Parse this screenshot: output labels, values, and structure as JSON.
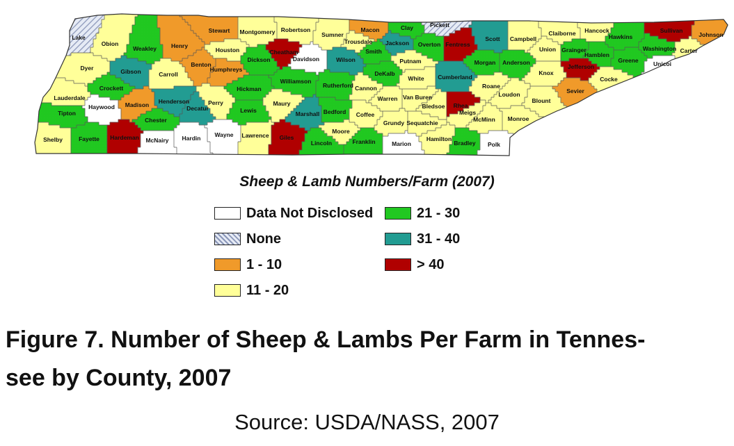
{
  "map": {
    "legend_title": "Sheep & Lamb Numbers/Farm (2007)",
    "categories": [
      {
        "key": "nd",
        "label": "Data Not Disclosed",
        "color": "#ffffff",
        "hatched": false
      },
      {
        "key": "none",
        "label": "None",
        "color": "#cfd8ea",
        "hatched": true
      },
      {
        "key": "c1",
        "label": "1 - 10",
        "color": "#f09a2a",
        "hatched": false
      },
      {
        "key": "c2",
        "label": "11 - 20",
        "color": "#ffff99",
        "hatched": false
      },
      {
        "key": "c3",
        "label": "21 - 30",
        "color": "#21c821",
        "hatched": false
      },
      {
        "key": "c4",
        "label": "31 - 40",
        "color": "#229c92",
        "hatched": false
      },
      {
        "key": "c5",
        "label": "> 40",
        "color": "#b00000",
        "hatched": false
      }
    ],
    "counties": [
      {
        "name": "Lake",
        "category": "none"
      },
      {
        "name": "Obion",
        "category": "c2"
      },
      {
        "name": "Weakley",
        "category": "c3"
      },
      {
        "name": "Henry",
        "category": "c1"
      },
      {
        "name": "Stewart",
        "category": "c1"
      },
      {
        "name": "Montgomery",
        "category": "c2"
      },
      {
        "name": "Robertson",
        "category": "c2"
      },
      {
        "name": "Sumner",
        "category": "c2"
      },
      {
        "name": "Macon",
        "category": "c1"
      },
      {
        "name": "Clay",
        "category": "c3"
      },
      {
        "name": "Pickett",
        "category": "none"
      },
      {
        "name": "Scott",
        "category": "c4"
      },
      {
        "name": "Campbell",
        "category": "c2"
      },
      {
        "name": "Claiborne",
        "category": "c2"
      },
      {
        "name": "Hancock",
        "category": "c2"
      },
      {
        "name": "Hawkins",
        "category": "c3"
      },
      {
        "name": "Sullivan",
        "category": "c5"
      },
      {
        "name": "Johnson",
        "category": "c1"
      },
      {
        "name": "Dyer",
        "category": "c2"
      },
      {
        "name": "Gibson",
        "category": "c4"
      },
      {
        "name": "Carroll",
        "category": "c2"
      },
      {
        "name": "Benton",
        "category": "c1"
      },
      {
        "name": "Houston",
        "category": "c2"
      },
      {
        "name": "Humphreys",
        "category": "c1"
      },
      {
        "name": "Cheatham",
        "category": "c5"
      },
      {
        "name": "Dickson",
        "category": "c3"
      },
      {
        "name": "Davidson",
        "category": "nd"
      },
      {
        "name": "Trousdale",
        "category": "c2"
      },
      {
        "name": "Smith",
        "category": "c3"
      },
      {
        "name": "Wilson",
        "category": "c4"
      },
      {
        "name": "Jackson",
        "category": "c4"
      },
      {
        "name": "Overton",
        "category": "c3"
      },
      {
        "name": "Fentress",
        "category": "c5"
      },
      {
        "name": "Putnam",
        "category": "c2"
      },
      {
        "name": "Morgan",
        "category": "c3"
      },
      {
        "name": "Anderson",
        "category": "c3"
      },
      {
        "name": "Union",
        "category": "c2"
      },
      {
        "name": "Grainger",
        "category": "c3"
      },
      {
        "name": "Hamblen",
        "category": "c3"
      },
      {
        "name": "Jefferson",
        "category": "c5"
      },
      {
        "name": "Greene",
        "category": "c3"
      },
      {
        "name": "Washington",
        "category": "c3"
      },
      {
        "name": "Carter",
        "category": "c2"
      },
      {
        "name": "Unicoi",
        "category": "nd"
      },
      {
        "name": "Lauderdale",
        "category": "c2"
      },
      {
        "name": "Crockett",
        "category": "c3"
      },
      {
        "name": "Haywood",
        "category": "nd"
      },
      {
        "name": "Madison",
        "category": "c1"
      },
      {
        "name": "Henderson",
        "category": "c4"
      },
      {
        "name": "Decatur",
        "category": "c4"
      },
      {
        "name": "Perry",
        "category": "c2"
      },
      {
        "name": "Hickman",
        "category": "c3"
      },
      {
        "name": "Williamson",
        "category": "c3"
      },
      {
        "name": "Rutherford",
        "category": "c3"
      },
      {
        "name": "Cannon",
        "category": "c2"
      },
      {
        "name": "DeKalb",
        "category": "c3"
      },
      {
        "name": "White",
        "category": "c2"
      },
      {
        "name": "Cumberland",
        "category": "c4"
      },
      {
        "name": "Roane",
        "category": "c2"
      },
      {
        "name": "Knox",
        "category": "c2"
      },
      {
        "name": "Sevier",
        "category": "c1"
      },
      {
        "name": "Cocke",
        "category": "c2"
      },
      {
        "name": "Tipton",
        "category": "c3"
      },
      {
        "name": "Chester",
        "category": "c3"
      },
      {
        "name": "Lewis",
        "category": "c3"
      },
      {
        "name": "Maury",
        "category": "c2"
      },
      {
        "name": "Marshall",
        "category": "c4"
      },
      {
        "name": "Bedford",
        "category": "c3"
      },
      {
        "name": "Coffee",
        "category": "c2"
      },
      {
        "name": "Warren",
        "category": "c2"
      },
      {
        "name": "Van Buren",
        "category": "c2"
      },
      {
        "name": "Bledsoe",
        "category": "c2"
      },
      {
        "name": "Rhea",
        "category": "c5"
      },
      {
        "name": "Meigs",
        "category": "c2"
      },
      {
        "name": "Loudon",
        "category": "c2"
      },
      {
        "name": "Blount",
        "category": "c2"
      },
      {
        "name": "Monroe",
        "category": "c2"
      },
      {
        "name": "McMinn",
        "category": "c2"
      },
      {
        "name": "Shelby",
        "category": "c2"
      },
      {
        "name": "Fayette",
        "category": "c3"
      },
      {
        "name": "Hardeman",
        "category": "c5"
      },
      {
        "name": "McNairy",
        "category": "nd"
      },
      {
        "name": "Hardin",
        "category": "nd"
      },
      {
        "name": "Wayne",
        "category": "nd"
      },
      {
        "name": "Lawrence",
        "category": "c2"
      },
      {
        "name": "Giles",
        "category": "c5"
      },
      {
        "name": "Lincoln",
        "category": "c3"
      },
      {
        "name": "Moore",
        "category": "c2"
      },
      {
        "name": "Franklin",
        "category": "c3"
      },
      {
        "name": "Grundy",
        "category": "c2"
      },
      {
        "name": "Sequatchie",
        "category": "c2"
      },
      {
        "name": "Marion",
        "category": "nd"
      },
      {
        "name": "Hamilton",
        "category": "c2"
      },
      {
        "name": "Bradley",
        "category": "c3"
      },
      {
        "name": "Polk",
        "category": "nd"
      }
    ]
  },
  "caption": {
    "line1": "Figure 7.  Number of Sheep & Lambs Per Farm in Tennes-",
    "line2": "see by County, 2007"
  },
  "source": "Source:  USDA/NASS, 2007"
}
